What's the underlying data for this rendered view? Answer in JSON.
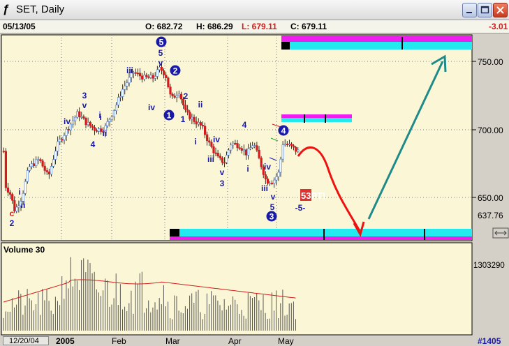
{
  "window": {
    "title": "SET, Daily",
    "icons": {
      "app": "chart-icon",
      "minimize": "minimize-icon",
      "maximize": "maximize-icon",
      "close": "close-icon"
    }
  },
  "info": {
    "date": "05/13/05",
    "open": "O: 682.72",
    "high": "H: 686.29",
    "low": "L: 679.11",
    "close": "C: 679.11",
    "change": "-3.01"
  },
  "colors": {
    "up": "#4a7cd9",
    "down": "#d41a1a",
    "wave": "#1a1aa8",
    "magenta": "#ee1fee",
    "cyan": "#22eaee",
    "redArrow": "#ee1111",
    "tealArrow": "#1e8a8a",
    "pane": "#fbf7d6"
  },
  "chart_data": {
    "type": "candlestick",
    "price_ticks": [
      "750.00",
      "700.00",
      "650.00"
    ],
    "last_price": "637.76",
    "volume_title": "Volume 30",
    "volume_last": "1303290",
    "date_labels": [
      "12/20/04",
      "2005",
      "Feb",
      "Mar",
      "Apr",
      "May"
    ],
    "bar_count_label": "#1405",
    "pti_label": "53PTI",
    "wave_labels": {
      "circled": [
        "5",
        "2",
        "1",
        "4",
        "3"
      ],
      "plain": [
        "5",
        "v",
        "iii",
        "iv",
        "3",
        "v",
        "iv",
        "i",
        "ii",
        "4",
        "i",
        "2",
        "1",
        "ii",
        "i",
        "iv",
        "iii",
        "v",
        "3",
        "4",
        "i",
        "iv",
        "iii",
        "v",
        "5",
        "-5-",
        "c",
        "2",
        "i",
        "ii"
      ]
    }
  }
}
